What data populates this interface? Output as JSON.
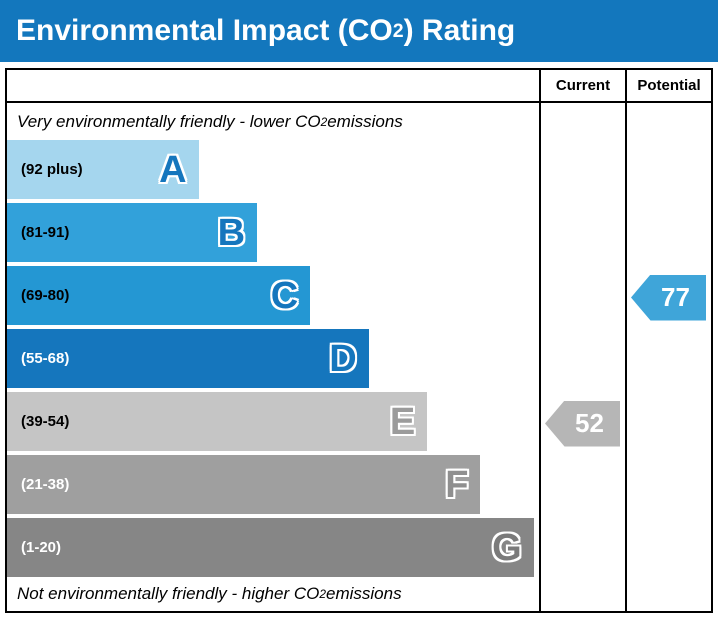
{
  "title": {
    "pre": "Environmental Impact (CO",
    "sub": "2",
    "post": ") Rating"
  },
  "columns": {
    "current": "Current",
    "potential": "Potential"
  },
  "notes": {
    "top": {
      "pre": "Very environmentally friendly - lower CO",
      "sub": "2",
      "post": " emissions"
    },
    "bottom": {
      "pre": "Not environmentally friendly - higher CO",
      "sub": "2",
      "post": " emissions"
    }
  },
  "chart_data": {
    "type": "bar",
    "title": "Environmental Impact (CO2) Rating",
    "categories": [
      "A",
      "B",
      "C",
      "D",
      "E",
      "F",
      "G"
    ],
    "bands": [
      {
        "letter": "A",
        "range": "(92 plus)",
        "color": "#a5d6ee",
        "letter_color": "#1576bd",
        "text_color": "#000000",
        "width_pct": 36
      },
      {
        "letter": "B",
        "range": "(81-91)",
        "color": "#32a1da",
        "letter_color": "#1576bd",
        "text_color": "#000000",
        "width_pct": 47
      },
      {
        "letter": "C",
        "range": "(69-80)",
        "color": "#2497d3",
        "letter_color": "#1576bd",
        "text_color": "#000000",
        "width_pct": 57
      },
      {
        "letter": "D",
        "range": "(55-68)",
        "color": "#1576bd",
        "letter_color": "#1576bd",
        "text_color": "#ffffff",
        "width_pct": 68
      },
      {
        "letter": "E",
        "range": "(39-54)",
        "color": "#c5c5c5",
        "letter_color": "#9b9b9b",
        "text_color": "#000000",
        "width_pct": 79
      },
      {
        "letter": "F",
        "range": "(21-38)",
        "color": "#9f9f9f",
        "letter_color": "#8f8f8f",
        "text_color": "#ffffff",
        "width_pct": 89
      },
      {
        "letter": "G",
        "range": "(1-20)",
        "color": "#868686",
        "letter_color": "#7a7a7a",
        "text_color": "#ffffff",
        "width_pct": 99
      }
    ],
    "current": {
      "value": "52",
      "band": "E",
      "arrow_color": "#b6b6b6"
    },
    "potential": {
      "value": "77",
      "band": "C",
      "arrow_color": "#3fa5d9"
    }
  },
  "theme": {
    "title_bg": "#1377bd",
    "title_fg": "#ffffff",
    "border": "#000000"
  }
}
